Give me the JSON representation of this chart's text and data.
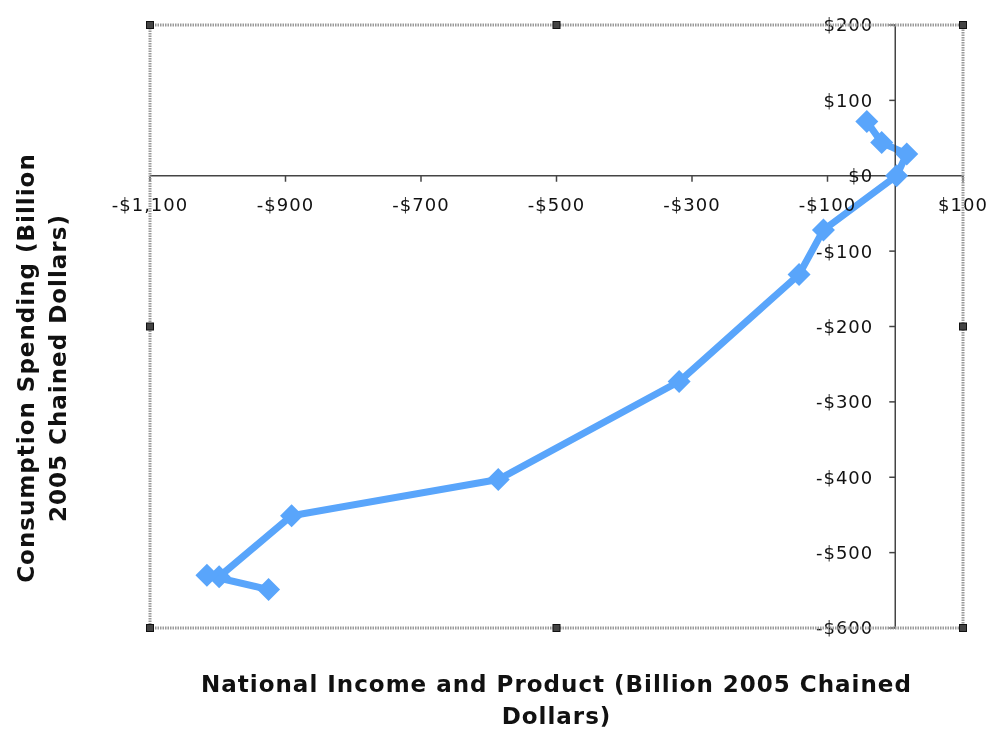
{
  "chart_data": {
    "type": "line",
    "xlabel": "National Income and Product (Billion 2005 Chained Dollars)",
    "ylabel": "Consumption Spending (Billion 2005 Chained Dollars)",
    "x": [
      -42,
      -20,
      17,
      2,
      -106,
      -142,
      -319,
      -586,
      -891,
      -998,
      -1016,
      -925
    ],
    "series": [
      {
        "color": "#59a5fb",
        "values": [
          72,
          44,
          29,
          0,
          -72,
          -131,
          -273,
          -403,
          -451,
          -532,
          -530,
          -549
        ]
      }
    ],
    "xlim": [
      -1100,
      100
    ],
    "ylim": [
      -600,
      200
    ],
    "xticks": [
      {
        "value": -1100,
        "label": "-$1,100"
      },
      {
        "value": -900,
        "label": "-$900"
      },
      {
        "value": -700,
        "label": "-$700"
      },
      {
        "value": -500,
        "label": "-$500"
      },
      {
        "value": -300,
        "label": "-$300"
      },
      {
        "value": -100,
        "label": "-$100"
      },
      {
        "value": 100,
        "label": "$100"
      }
    ],
    "yticks": [
      {
        "value": 200,
        "label": "$200"
      },
      {
        "value": 100,
        "label": "$100"
      },
      {
        "value": 0,
        "label": "$0"
      },
      {
        "value": -100,
        "label": "-$100"
      },
      {
        "value": -200,
        "label": "-$200"
      },
      {
        "value": -300,
        "label": "-$300"
      },
      {
        "value": -400,
        "label": "-$400"
      },
      {
        "value": -500,
        "label": "-$500"
      },
      {
        "value": -600,
        "label": "-$600"
      }
    ],
    "marker": "diamond",
    "line_style": "solid"
  }
}
